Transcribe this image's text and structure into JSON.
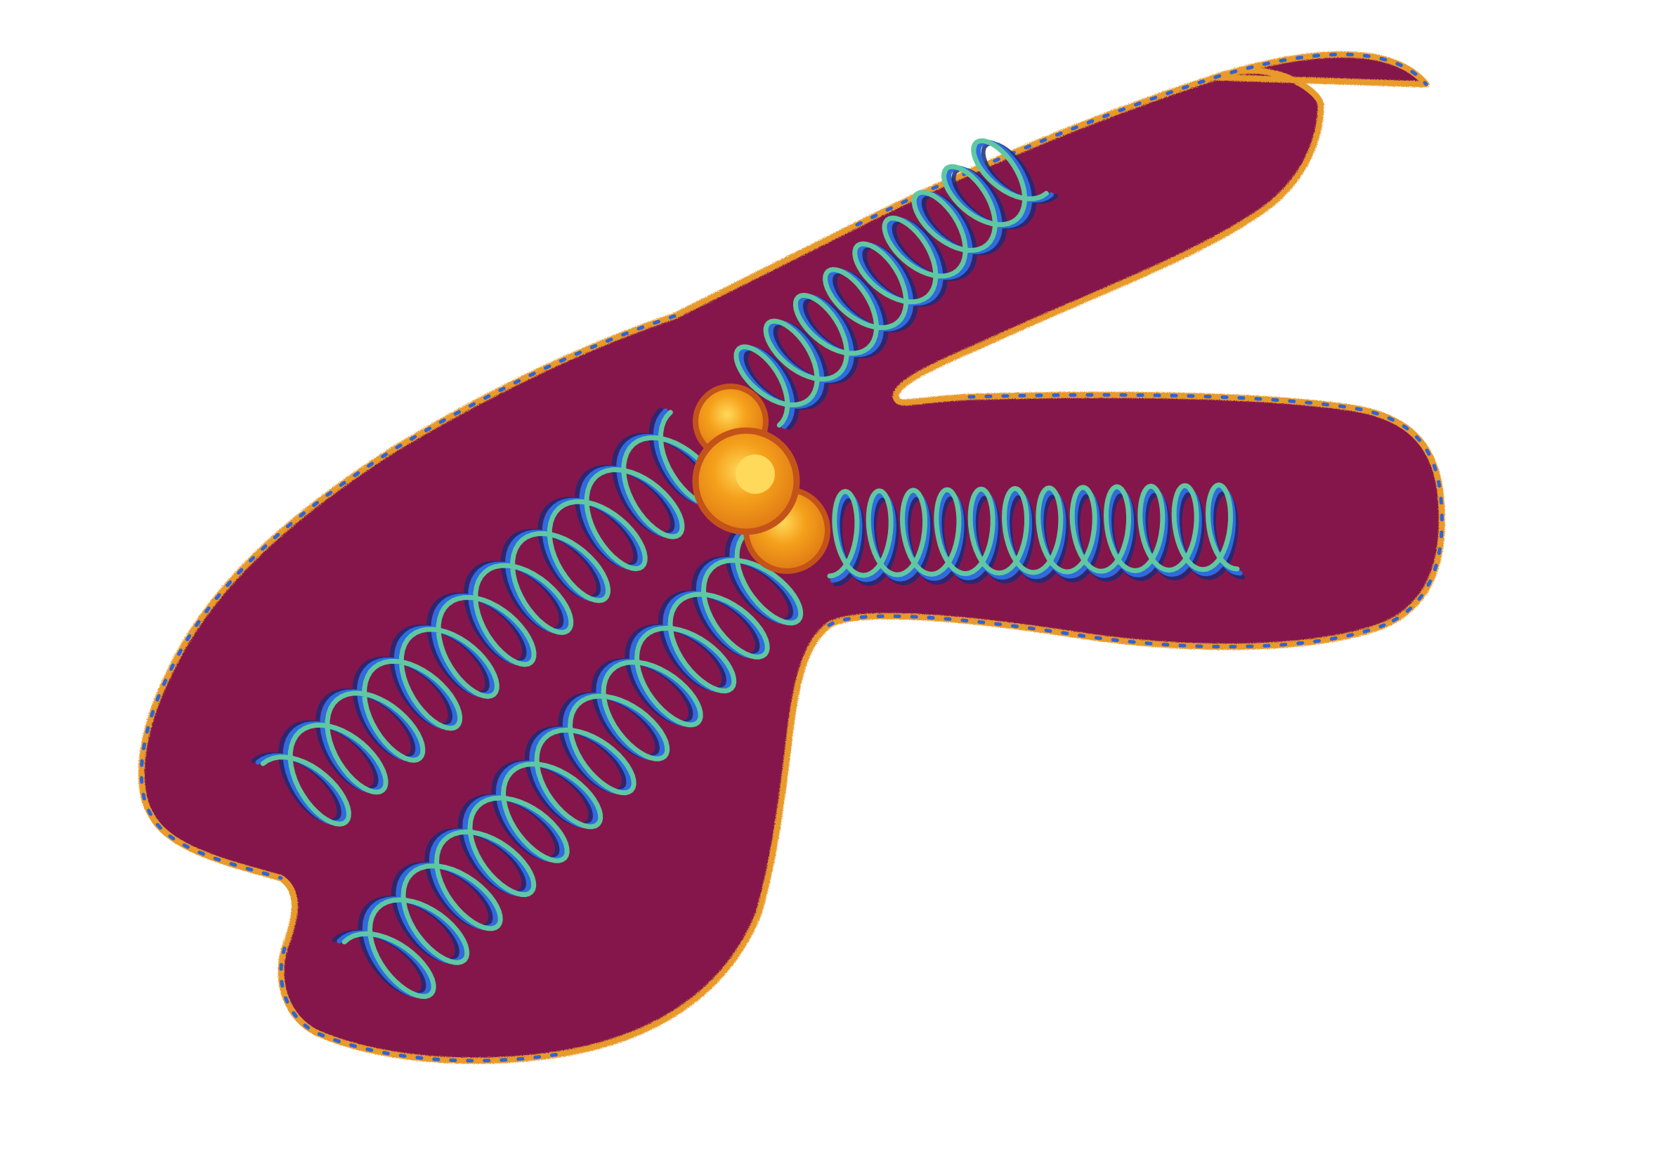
{
  "illustration": {
    "subject": "chromosome",
    "icon": "chromosome-icon",
    "colors": {
      "background": "#ffffff",
      "body_fill": "#85174b",
      "outline_orange": "#e89a2c",
      "outline_blue": "#2f63d6",
      "coil_green": "#5fc8a2",
      "coil_blue": "#2d6be0",
      "coil_navy": "#1b2a78",
      "centromere_orange": "#f5a11c",
      "centromere_dark": "#c4531a",
      "centromere_highlight": "#ffd95a"
    }
  }
}
